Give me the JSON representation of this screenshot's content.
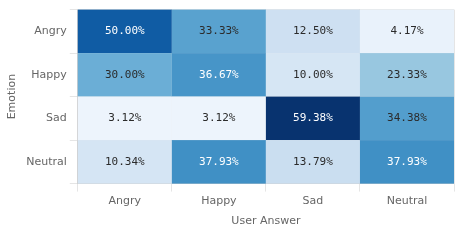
{
  "chart_data": {
    "type": "heatmap",
    "x_label": "User Answer",
    "y_label": "Emotion",
    "x_categories": [
      "Angry",
      "Happy",
      "Sad",
      "Neutral"
    ],
    "y_categories": [
      "Angry",
      "Happy",
      "Sad",
      "Neutral"
    ],
    "values": [
      [
        50.0,
        33.33,
        12.5,
        4.17
      ],
      [
        30.0,
        36.67,
        10.0,
        23.33
      ],
      [
        3.12,
        3.12,
        59.38,
        34.38
      ],
      [
        10.34,
        37.93,
        13.79,
        37.93
      ]
    ],
    "value_labels": [
      [
        "50.00%",
        "33.33%",
        "12.50%",
        "4.17%"
      ],
      [
        "30.00%",
        "36.67%",
        "10.00%",
        "23.33%"
      ],
      [
        "3.12%",
        "3.12%",
        "59.38%",
        "34.38%"
      ],
      [
        "10.34%",
        "37.93%",
        "13.79%",
        "37.93%"
      ]
    ],
    "color_range": [
      0,
      60
    ],
    "data_labels": true,
    "grid": true
  }
}
